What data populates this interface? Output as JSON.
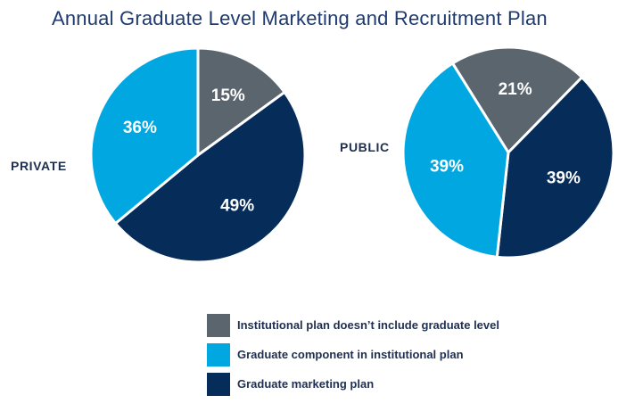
{
  "title": "Annual Graduate Level Marketing and Recruitment Plan",
  "colors": {
    "institutional": "#5b656e",
    "component": "#00a7e1",
    "marketing": "#062c5a"
  },
  "legend": [
    {
      "label": "Institutional plan doesn’t include graduate level",
      "color": "#5b656e"
    },
    {
      "label": "Graduate component in institutional plan",
      "color": "#00a7e1"
    },
    {
      "label": "Graduate marketing plan",
      "color": "#062c5a"
    }
  ],
  "chart_data": [
    {
      "type": "pie",
      "label": "PRIVATE",
      "slices": [
        {
          "category": "Institutional plan doesn’t include graduate level",
          "value": 15,
          "text": "15%"
        },
        {
          "category": "Graduate marketing plan",
          "value": 49,
          "text": "49%"
        },
        {
          "category": "Graduate component in institutional plan",
          "value": 36,
          "text": "36%"
        }
      ]
    },
    {
      "type": "pie",
      "label": "PUBLIC",
      "slices": [
        {
          "category": "Institutional plan doesn’t include graduate level",
          "value": 21,
          "text": "21%"
        },
        {
          "category": "Graduate marketing plan",
          "value": 39,
          "text": "39%"
        },
        {
          "category": "Graduate component in institutional plan",
          "value": 39,
          "text": "39%"
        }
      ]
    }
  ]
}
